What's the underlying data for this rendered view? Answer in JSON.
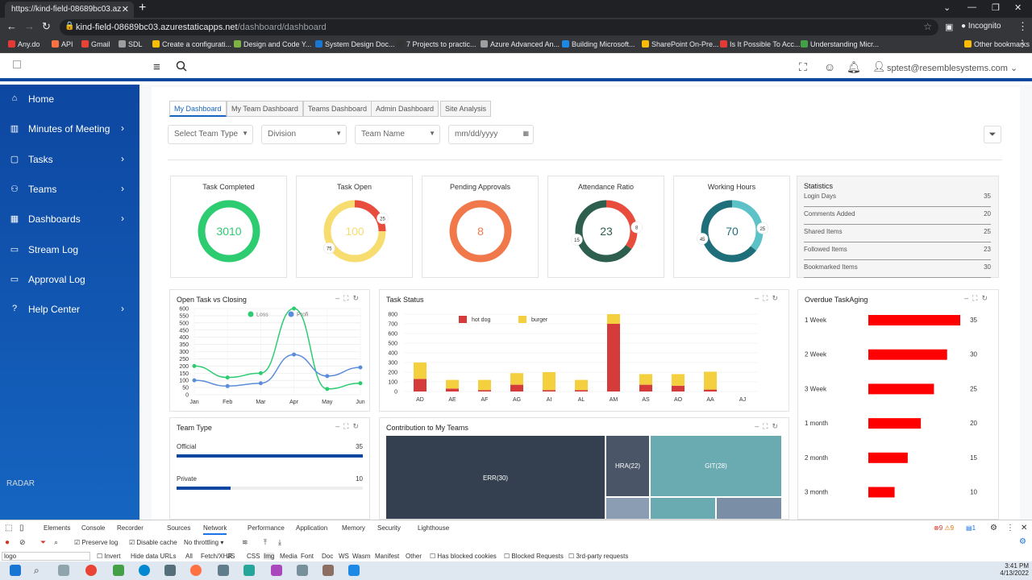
{
  "browser": {
    "tab_title": "https://kind-field-08689bc03.az",
    "url_host": "kind-field-08689bc03.azurestaticapps.net",
    "url_path": "/dashboard/dashboard",
    "incognito": "Incognito",
    "bookmarks": [
      "Any.do",
      "API",
      "Gmail",
      "SDL",
      "Create a configurati...",
      "Design and Code Y...",
      "System Design Doc...",
      "7 Projects to practic...",
      "Azure Advanced An...",
      "Building Microsoft...",
      "SharePoint On-Pre...",
      "Is It Possible To Acc...",
      "Understanding Micr...",
      "Other bookmarks"
    ],
    "bookmark_colors": [
      "#e53935",
      "#ff7043",
      "#ea4335",
      "#9e9e9e",
      "#fbbc04",
      "#7cb342",
      "#1976d2",
      "#333333",
      "#9e9e9e",
      "#1e88e5",
      "#fbbc04",
      "#e53935",
      "#43a047",
      "#fbbc04"
    ]
  },
  "header": {
    "user": "sptest@resemblesystems.com"
  },
  "sidebar": {
    "items": [
      {
        "label": "Home",
        "icon": "home-icon",
        "glyph": "⌂",
        "chevron": false
      },
      {
        "label": "Minutes of Meeting",
        "icon": "book-icon",
        "glyph": "▥",
        "chevron": true
      },
      {
        "label": "Tasks",
        "icon": "clipboard-icon",
        "glyph": "▢",
        "chevron": true
      },
      {
        "label": "Teams",
        "icon": "users-icon",
        "glyph": "⚇",
        "chevron": true
      },
      {
        "label": "Dashboards",
        "icon": "grid-icon",
        "glyph": "▦",
        "chevron": true
      },
      {
        "label": "Stream Log",
        "icon": "message-icon",
        "glyph": "▭",
        "chevron": false
      },
      {
        "label": "Approval Log",
        "icon": "message-check-icon",
        "glyph": "▭",
        "chevron": false
      },
      {
        "label": "Help Center",
        "icon": "help-icon",
        "glyph": "?",
        "chevron": true
      }
    ],
    "footer_logo": "RADAR"
  },
  "tabs": [
    "My Dashboard",
    "My Team Dashboard",
    "Teams Dashboard",
    "Admin Dashboard",
    "Site Analysis"
  ],
  "filters": {
    "team_type": "Select Team Type",
    "division": "Division",
    "team_name": "Team Name",
    "date": "mm/dd/yyyy"
  },
  "kpis": [
    {
      "title": "Task Completed",
      "value": "3010",
      "segments": [
        {
          "value": 100,
          "color": "#2ecc71"
        }
      ],
      "badges": []
    },
    {
      "title": "Task Open",
      "value": "100",
      "segments": [
        {
          "value": 25,
          "color": "#e74c3c"
        },
        {
          "value": 75,
          "color": "#f7dc6f"
        }
      ],
      "badges": [
        "25",
        "75"
      ]
    },
    {
      "title": "Pending Approvals",
      "value": "8",
      "segments": [
        {
          "value": 100,
          "color": "#f0784a"
        }
      ],
      "badges": []
    },
    {
      "title": "Attendance Ratio",
      "value": "23",
      "segments": [
        {
          "value": 8,
          "color": "#e74c3c"
        },
        {
          "value": 15,
          "color": "#2e5e4e"
        }
      ],
      "badges": [
        "8",
        "15"
      ]
    },
    {
      "title": "Working Hours",
      "value": "70",
      "segments": [
        {
          "value": 25,
          "color": "#5dc2c8"
        },
        {
          "value": 45,
          "color": "#1f6f7a"
        }
      ],
      "badges": [
        "25",
        "45"
      ]
    }
  ],
  "statistics": {
    "title": "Statistics",
    "rows": [
      {
        "label": "Login Days",
        "value": "35"
      },
      {
        "label": "Comments Added",
        "value": "20"
      },
      {
        "label": "Shared Items",
        "value": "25"
      },
      {
        "label": "Followed Items",
        "value": "23"
      },
      {
        "label": "Bookmarked Items",
        "value": "30"
      }
    ]
  },
  "open_task_chart": {
    "title": "Open Task vs Closing",
    "chart_data": {
      "type": "line",
      "categories": [
        "Jan",
        "Feb",
        "Mar",
        "Apr",
        "May",
        "Jun"
      ],
      "ylim": [
        0,
        600
      ],
      "yticks": [
        0,
        50,
        100,
        150,
        200,
        250,
        300,
        350,
        400,
        450,
        500,
        550,
        600
      ],
      "series": [
        {
          "name": "Loss",
          "color": "#2ecc71",
          "values": [
            200,
            120,
            150,
            600,
            40,
            80
          ]
        },
        {
          "name": "Profi",
          "color": "#5b8ddb",
          "values": [
            100,
            60,
            80,
            280,
            130,
            190
          ]
        }
      ]
    }
  },
  "task_status_chart": {
    "title": "Task Status",
    "chart_data": {
      "type": "bar",
      "categories": [
        "AD",
        "AE",
        "AF",
        "AG",
        "AI",
        "AL",
        "AM",
        "AS",
        "AO",
        "AA",
        "AJ"
      ],
      "ylim": [
        0,
        800
      ],
      "yticks": [
        0,
        100,
        200,
        300,
        400,
        500,
        600,
        700,
        800
      ],
      "series": [
        {
          "name": "hot dog",
          "color": "#d63b3b",
          "values": [
            130,
            30,
            15,
            70,
            15,
            15,
            700,
            70,
            60,
            20,
            0
          ]
        },
        {
          "name": "burger",
          "color": "#f4d03f",
          "values": [
            170,
            90,
            105,
            120,
            185,
            105,
            100,
            110,
            120,
            185,
            0
          ]
        }
      ]
    }
  },
  "overdue_chart": {
    "title": "Overdue TaskAging",
    "chart_data": {
      "type": "bar",
      "orientation": "horizontal",
      "categories": [
        "1 Week",
        "2 Week",
        "3 Week",
        "1 month",
        "2 month",
        "3 month"
      ],
      "values": [
        35,
        30,
        25,
        20,
        15,
        10
      ],
      "color": "#ff0000",
      "xlim": [
        0,
        35
      ]
    }
  },
  "team_type": {
    "title": "Team Type",
    "rows": [
      {
        "label": "Official",
        "value": "35",
        "pct": 100
      },
      {
        "label": "Private",
        "value": "10",
        "pct": 29
      }
    ]
  },
  "contribution": {
    "title": "Contribution to My Teams",
    "cells": [
      {
        "label": "ERR(30)",
        "color": "#34404f"
      },
      {
        "label": "HRA(22)",
        "color": "#4a5568"
      },
      {
        "label": "GIT(28)",
        "color": "#6aaab1"
      }
    ]
  },
  "devtools": {
    "tabs": [
      "Elements",
      "Console",
      "Recorder",
      "Sources",
      "Network",
      "Performance",
      "Application",
      "Memory",
      "Security",
      "Lighthouse"
    ],
    "active": "Network",
    "errors": "9",
    "warnings": "9",
    "messages": "1",
    "row2": {
      "preserve": "Preserve log",
      "disable_cache": "Disable cache",
      "throttle": "No throttling"
    },
    "filter_value": "logo",
    "row3": [
      "Invert",
      "Hide data URLs",
      "All",
      "Fetch/XHR",
      "JS",
      "CSS",
      "Img",
      "Media",
      "Font",
      "Doc",
      "WS",
      "Wasm",
      "Manifest",
      "Other",
      "Has blocked cookies",
      "Blocked Requests",
      "3rd-party requests"
    ]
  },
  "taskbar": {
    "time": "3:41 PM",
    "date": "4/13/2022"
  }
}
